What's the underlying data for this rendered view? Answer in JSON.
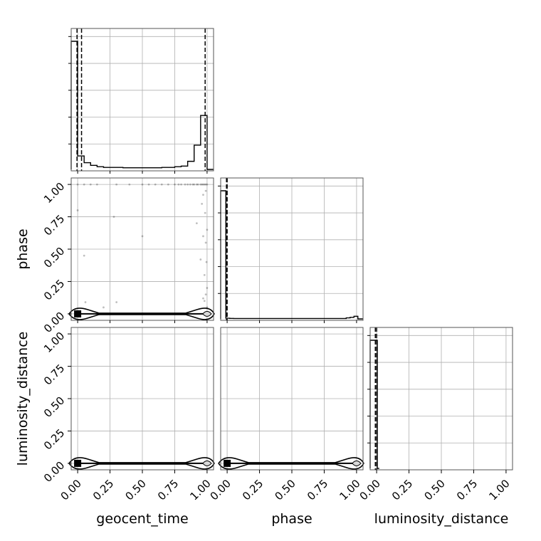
{
  "chart_data": {
    "type": "corner",
    "parameters": [
      "geocent_time",
      "phase",
      "luminosity_distance"
    ],
    "tick_labels": [
      "0.00",
      "0.25",
      "0.50",
      "0.75",
      "1.00"
    ],
    "tick_values": [
      0,
      0.25,
      0.5,
      0.75,
      1.0
    ],
    "axis_range": [
      -0.05,
      1.05
    ],
    "grid": true,
    "histograms": [
      {
        "name": "geocent_time",
        "bin_edges": [
          -0.05,
          0.0,
          0.05,
          0.1,
          0.15,
          0.2,
          0.25,
          0.3,
          0.35,
          0.4,
          0.45,
          0.5,
          0.55,
          0.6,
          0.65,
          0.7,
          0.75,
          0.8,
          0.85,
          0.9,
          0.95,
          1.0,
          1.05
        ],
        "counts": [
          0.95,
          0.1,
          0.05,
          0.03,
          0.02,
          0.015,
          0.015,
          0.015,
          0.012,
          0.012,
          0.012,
          0.012,
          0.012,
          0.012,
          0.015,
          0.015,
          0.02,
          0.025,
          0.06,
          0.18,
          0.4,
          0.0
        ],
        "quantiles": [
          -0.005,
          0.03,
          0.985
        ]
      },
      {
        "name": "phase",
        "bin_edges": [
          -0.05,
          -0.01,
          0.02,
          0.05,
          0.08,
          0.11,
          0.14,
          0.17,
          0.2,
          0.23,
          0.26,
          0.29,
          0.32,
          0.35,
          0.38,
          0.41,
          0.44,
          0.47,
          0.5,
          0.53,
          0.56,
          0.59,
          0.62,
          0.65,
          0.68,
          0.71,
          0.74,
          0.77,
          0.8,
          0.83,
          0.86,
          0.89,
          0.92,
          0.95,
          0.98,
          1.01,
          1.05
        ],
        "counts": [
          0.98,
          0.005,
          0.004,
          0.003,
          0.003,
          0.003,
          0.003,
          0.003,
          0.003,
          0.003,
          0.003,
          0.003,
          0.003,
          0.003,
          0.003,
          0.003,
          0.003,
          0.003,
          0.003,
          0.003,
          0.003,
          0.003,
          0.003,
          0.003,
          0.003,
          0.003,
          0.003,
          0.003,
          0.003,
          0.003,
          0.003,
          0.003,
          0.008,
          0.012,
          0.02,
          0.0
        ],
        "quantiles": [
          -0.005,
          0.0
        ]
      },
      {
        "name": "luminosity_distance",
        "bin_edges": [
          -0.05,
          -0.005,
          0.005,
          0.02
        ],
        "counts": [
          1.0,
          1.0,
          0.0
        ],
        "quantiles": [
          -0.01,
          0.0
        ]
      }
    ],
    "pairs": [
      {
        "x": "geocent_time",
        "y": "phase",
        "scatter": [
          [
            0.0,
            1.0
          ],
          [
            0.05,
            1.0
          ],
          [
            0.1,
            1.0
          ],
          [
            0.15,
            1.0
          ],
          [
            0.3,
            1.0
          ],
          [
            0.4,
            1.0
          ],
          [
            0.5,
            1.0
          ],
          [
            0.55,
            1.0
          ],
          [
            0.6,
            1.0
          ],
          [
            0.65,
            1.0
          ],
          [
            0.7,
            1.0
          ],
          [
            0.75,
            1.0
          ],
          [
            0.78,
            1.0
          ],
          [
            0.8,
            1.0
          ],
          [
            0.83,
            1.0
          ],
          [
            0.85,
            1.0
          ],
          [
            0.87,
            1.0
          ],
          [
            0.89,
            1.0
          ],
          [
            0.9,
            1.0
          ],
          [
            0.92,
            1.0
          ],
          [
            0.93,
            1.0
          ],
          [
            0.95,
            1.0
          ],
          [
            0.96,
            1.0
          ],
          [
            0.97,
            1.0
          ],
          [
            0.98,
            1.0
          ],
          [
            0.99,
            1.0
          ],
          [
            1.0,
            1.0
          ],
          [
            0.0,
            0.8
          ],
          [
            0.05,
            0.45
          ],
          [
            0.28,
            0.75
          ],
          [
            0.5,
            0.6
          ],
          [
            0.92,
            0.7
          ],
          [
            0.95,
            0.42
          ],
          [
            0.96,
            0.85
          ],
          [
            0.97,
            0.92
          ],
          [
            0.98,
            0.3
          ],
          [
            0.99,
            0.55
          ],
          [
            1.0,
            0.65
          ],
          [
            1.0,
            0.2
          ],
          [
            0.99,
            0.15
          ],
          [
            0.98,
            0.1
          ],
          [
            1.0,
            0.05
          ],
          [
            0.06,
            0.09
          ],
          [
            0.3,
            0.09
          ],
          [
            0.97,
            0.6
          ],
          [
            0.99,
            0.95
          ],
          [
            0.985,
            0.78
          ],
          [
            0.995,
            0.4
          ],
          [
            0.2,
            0.05
          ],
          [
            0.97,
            0.12
          ]
        ],
        "band": {
          "y": 0.0,
          "x_from": 0.0,
          "x_to": 1.0
        }
      },
      {
        "x": "geocent_time",
        "y": "luminosity_distance",
        "scatter": [],
        "band": {
          "y": 0.0,
          "x_from": 0.0,
          "x_to": 1.0
        }
      },
      {
        "x": "phase",
        "y": "luminosity_distance",
        "scatter": [],
        "band": {
          "y": 0.0,
          "x_from": 0.0,
          "x_to": 1.0
        }
      }
    ]
  },
  "colors": {
    "line": "#000000",
    "grid": "#b0b0b0",
    "frame": "#555555",
    "scatter": "#000000"
  }
}
